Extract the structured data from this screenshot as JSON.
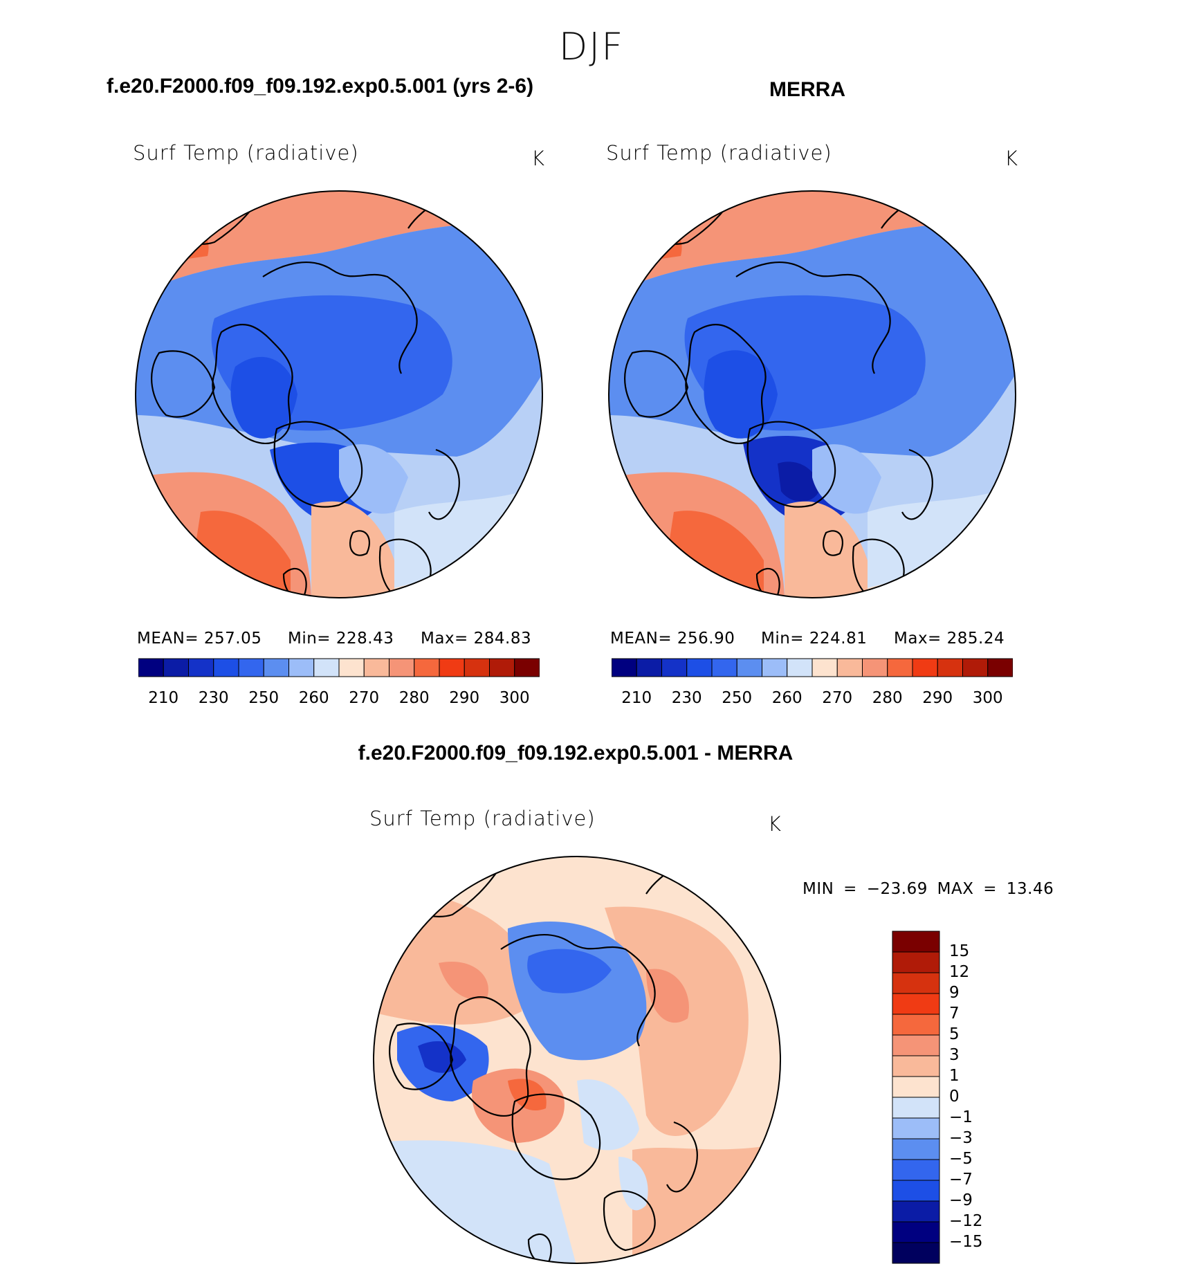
{
  "season": "DJF",
  "panels": {
    "model": {
      "case_title": "f.e20.F2000.f09_f09.192.exp0.5.001 (yrs 2-6)",
      "variable": "Surf Temp (radiative)",
      "units": "K",
      "mean_label": "MEAN=",
      "mean_value": "257.05",
      "min_label": "Min=",
      "min_value": "228.43",
      "max_label": "Max=",
      "max_value": "284.83"
    },
    "obs": {
      "case_title": "MERRA",
      "variable": "Surf Temp (radiative)",
      "units": "K",
      "mean_label": "MEAN=",
      "mean_value": "256.90",
      "min_label": "Min=",
      "min_value": "224.81",
      "max_label": "Max=",
      "max_value": "285.24"
    },
    "diff": {
      "case_title": "f.e20.F2000.f09_f09.192.exp0.5.001 - MERRA",
      "variable": "Surf Temp (radiative)",
      "units": "K",
      "minmax_text": "MIN = −23.69 MAX = 13.46"
    }
  },
  "abs_colorbar": {
    "colors": [
      "#000080",
      "#0b1ca6",
      "#1432c8",
      "#1d4fe6",
      "#3366ee",
      "#5c8ef0",
      "#9cbdf8",
      "#d2e3f9",
      "#fde3cf",
      "#f9b99a",
      "#f59477",
      "#f5683d",
      "#f03b14",
      "#d6320f",
      "#b01b08",
      "#7a0000"
    ],
    "tick_labels": [
      "210",
      "230",
      "250",
      "260",
      "270",
      "280",
      "290",
      "300"
    ]
  },
  "diff_colorbar": {
    "colors": [
      "#7a0000",
      "#b01b08",
      "#d6320f",
      "#f03b14",
      "#f5683d",
      "#f59477",
      "#f9b99a",
      "#fde3cf",
      "#d2e3f9",
      "#9cbdf8",
      "#5c8ef0",
      "#3366ee",
      "#1d4fe6",
      "#0b1ca6",
      "#000080"
    ],
    "tick_labels": [
      "15",
      "12",
      "9",
      "7",
      "5",
      "3",
      "1",
      "0",
      "−1",
      "−3",
      "−5",
      "−7",
      "−9",
      "−12",
      "−15"
    ]
  }
}
